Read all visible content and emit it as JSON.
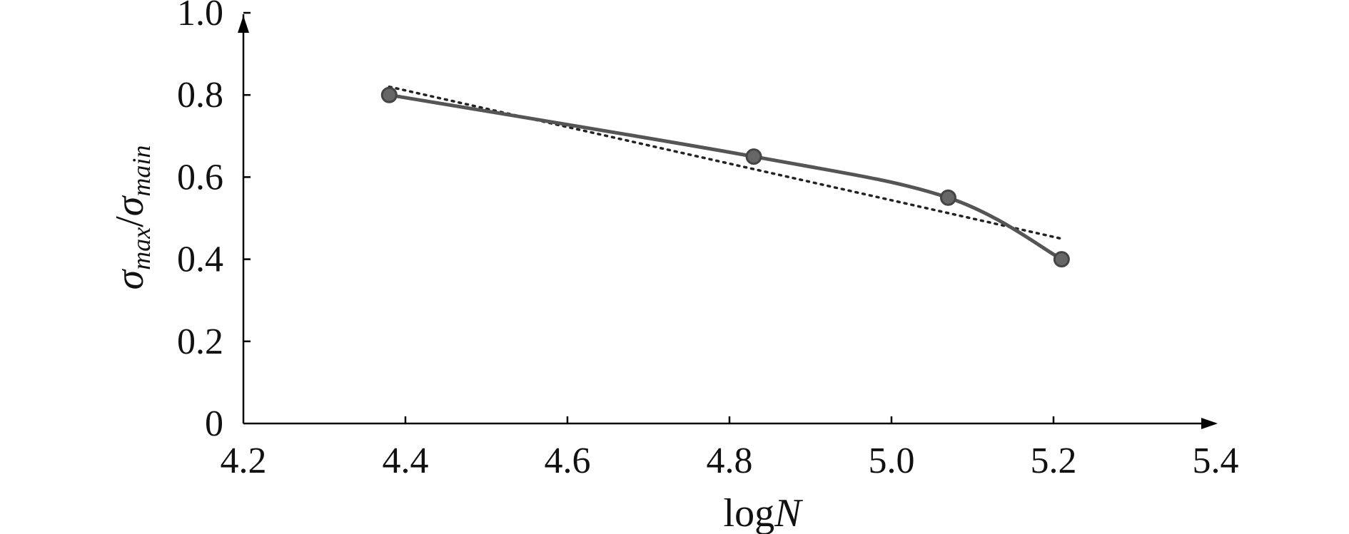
{
  "chart_data": {
    "type": "line",
    "xlabel": {
      "prefix": "log",
      "variable": "N"
    },
    "ylabel": {
      "sigma": "σ",
      "sub_numerator": "max",
      "slash": "/",
      "sub_denominator": "main"
    },
    "xlim": [
      4.2,
      5.4
    ],
    "ylim": [
      0,
      1.0
    ],
    "x_ticks": [
      "4.2",
      "4.4",
      "4.6",
      "4.8",
      "5.0",
      "5.2",
      "5.4"
    ],
    "y_ticks": [
      "0",
      "0.2",
      "0.4",
      "0.6",
      "0.8",
      "1.0"
    ],
    "grid": false,
    "series": [
      {
        "style": "solid with markers",
        "color": "#555555",
        "points": [
          {
            "x": 4.38,
            "y": 0.8
          },
          {
            "x": 4.83,
            "y": 0.65
          },
          {
            "x": 5.07,
            "y": 0.55
          },
          {
            "x": 5.21,
            "y": 0.4
          }
        ]
      },
      {
        "style": "dotted linear trend",
        "color": "#222222",
        "points": [
          {
            "x": 4.38,
            "y": 0.82
          },
          {
            "x": 5.21,
            "y": 0.45
          }
        ]
      }
    ]
  }
}
